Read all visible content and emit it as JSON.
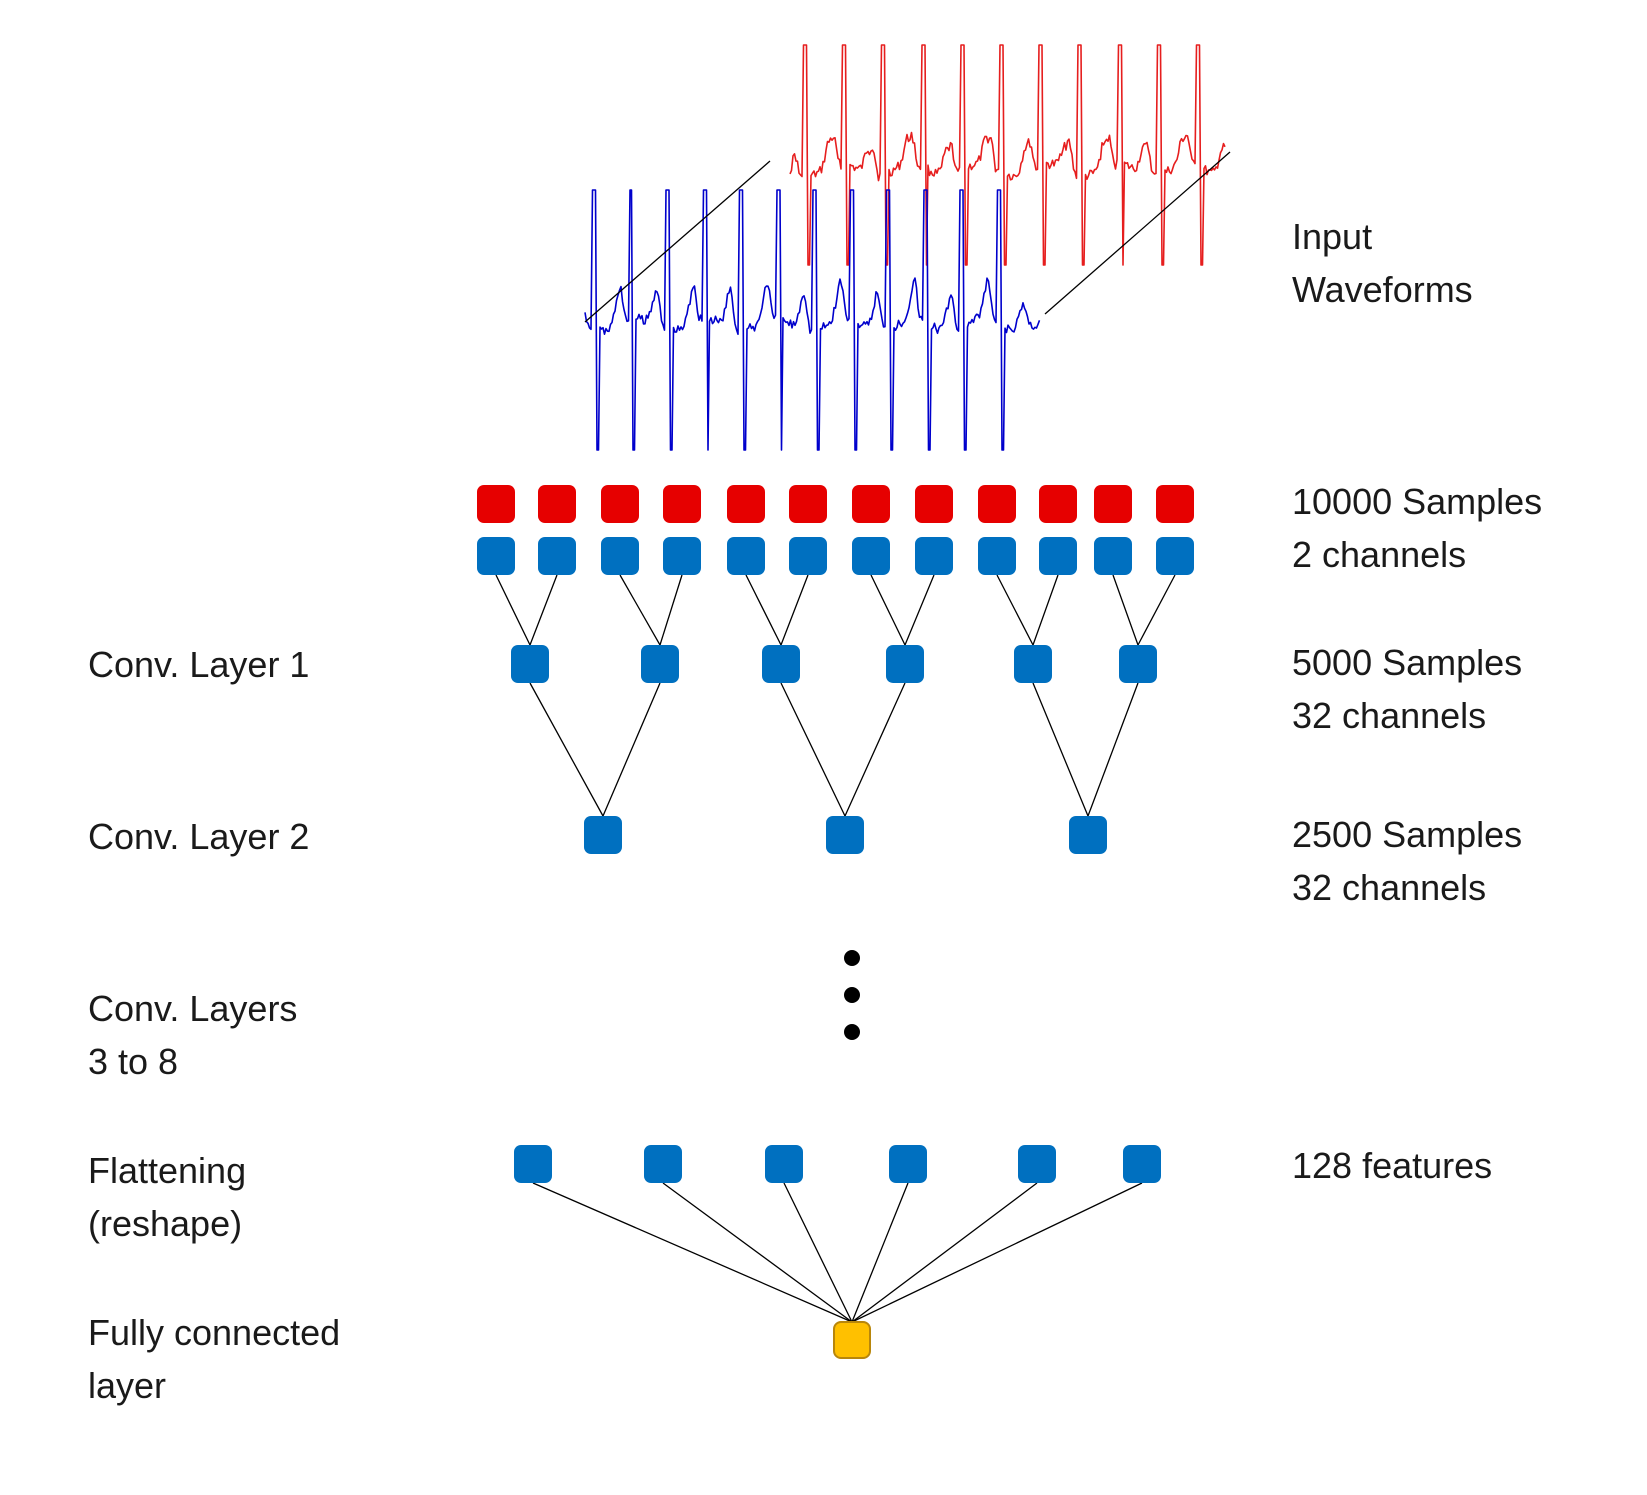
{
  "colors": {
    "channel_1": "#e60000",
    "channel_2": "#0070c0",
    "waveform_red": "#e61e1e",
    "waveform_blue": "#0000cc",
    "output_node": "#ffc000"
  },
  "labels": {
    "left": {
      "conv1": "Conv. Layer 1",
      "conv2": "Conv. Layer 2",
      "conv3_8": [
        "Conv. Layers",
        "3 to 8"
      ],
      "flatten": [
        "Flattening",
        "(reshape)"
      ],
      "fully_connected": [
        "Fully connected",
        "layer"
      ]
    },
    "right": {
      "input": [
        "Input",
        "Waveforms"
      ],
      "input_size": [
        "10000 Samples",
        "2 channels"
      ],
      "conv1_size": [
        "5000 Samples",
        "32 channels"
      ],
      "conv2_size": [
        "2500 Samples",
        "32 channels"
      ],
      "flatten_size": "128 features"
    }
  },
  "network": {
    "input_red_nodes": 12,
    "input_blue_nodes": 12,
    "conv1_nodes": 6,
    "conv2_nodes": 3,
    "flatten_nodes": 6,
    "output_nodes": 1,
    "ellipsis_dots": 3
  },
  "icons": {
    "waveform_red": "ecg-waveform-icon",
    "waveform_blue": "ecg-waveform-icon"
  }
}
